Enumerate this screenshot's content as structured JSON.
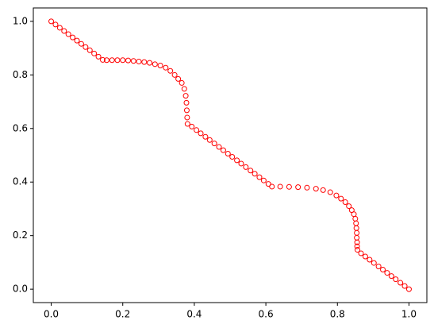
{
  "chart_data": {
    "type": "scatter",
    "x": [
      0,
      0.012,
      0.024,
      0.036,
      0.048,
      0.06,
      0.072,
      0.084,
      0.096,
      0.108,
      0.12,
      0.132,
      0.144,
      0.155,
      0.17,
      0.185,
      0.2,
      0.215,
      0.23,
      0.245,
      0.26,
      0.275,
      0.29,
      0.305,
      0.32,
      0.333,
      0.345,
      0.355,
      0.365,
      0.372,
      0.376,
      0.378,
      0.379,
      0.38,
      0.381,
      0.393,
      0.406,
      0.418,
      0.431,
      0.443,
      0.456,
      0.469,
      0.481,
      0.494,
      0.506,
      0.519,
      0.531,
      0.544,
      0.557,
      0.569,
      0.582,
      0.594,
      0.607,
      0.617,
      0.64,
      0.665,
      0.69,
      0.715,
      0.74,
      0.76,
      0.78,
      0.797,
      0.81,
      0.822,
      0.832,
      0.84,
      0.846,
      0.85,
      0.852,
      0.853,
      0.854,
      0.854,
      0.855,
      0.855,
      0.856,
      0.866,
      0.878,
      0.89,
      0.902,
      0.915,
      0.927,
      0.939,
      0.951,
      0.963,
      0.976,
      0.988,
      1.0
    ],
    "y": [
      1,
      0.988,
      0.976,
      0.964,
      0.952,
      0.94,
      0.928,
      0.916,
      0.904,
      0.892,
      0.88,
      0.868,
      0.856,
      0.855,
      0.855,
      0.855,
      0.855,
      0.854,
      0.852,
      0.85,
      0.848,
      0.845,
      0.84,
      0.835,
      0.827,
      0.815,
      0.8,
      0.785,
      0.77,
      0.748,
      0.722,
      0.696,
      0.668,
      0.641,
      0.617,
      0.607,
      0.594,
      0.582,
      0.569,
      0.557,
      0.544,
      0.531,
      0.519,
      0.506,
      0.494,
      0.481,
      0.469,
      0.456,
      0.443,
      0.431,
      0.418,
      0.406,
      0.393,
      0.383,
      0.383,
      0.382,
      0.381,
      0.379,
      0.375,
      0.37,
      0.362,
      0.35,
      0.338,
      0.325,
      0.31,
      0.295,
      0.28,
      0.263,
      0.246,
      0.228,
      0.21,
      0.192,
      0.175,
      0.16,
      0.147,
      0.134,
      0.122,
      0.11,
      0.098,
      0.085,
      0.073,
      0.061,
      0.049,
      0.037,
      0.024,
      0.012,
      0
    ],
    "color": "#ff0000",
    "xlim": [
      -0.05,
      1.05
    ],
    "ylim": [
      -0.05,
      1.05
    ],
    "xticks": [
      {
        "value": 0,
        "label": "0.0"
      },
      0.2,
      0.4,
      0.6,
      0.8,
      {
        "value": 1,
        "label": "1.0"
      }
    ],
    "yticks": [
      {
        "value": 0,
        "label": "0.0"
      },
      0.2,
      0.4,
      0.6,
      0.8,
      {
        "value": 1,
        "label": "1.0"
      }
    ]
  }
}
